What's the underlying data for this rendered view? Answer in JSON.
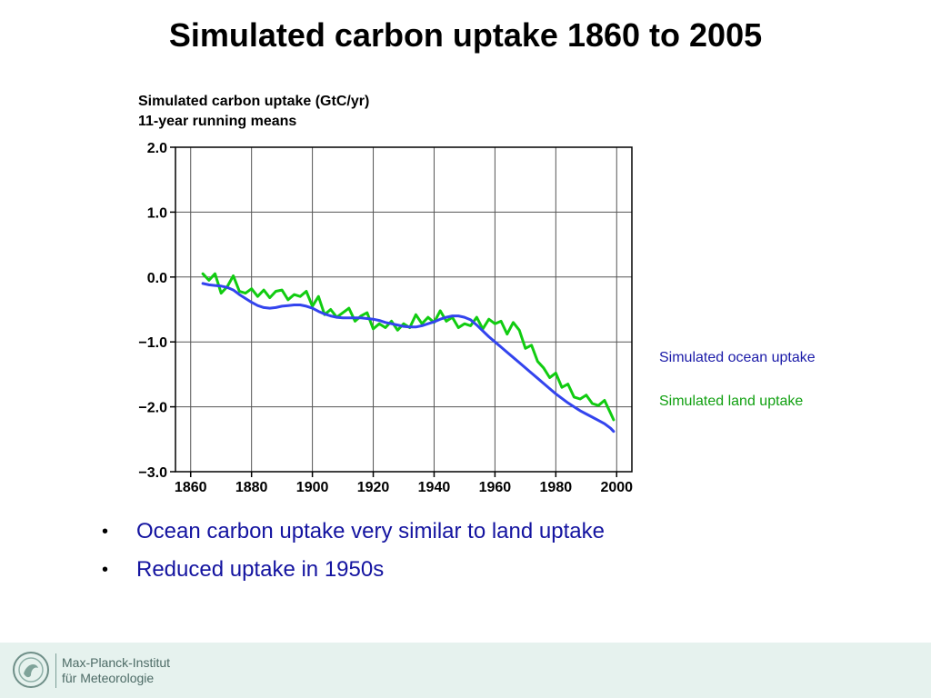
{
  "slide": {
    "title": "Simulated carbon uptake 1860 to 2005",
    "bullets": [
      "Ocean carbon uptake very similar to land uptake",
      "Reduced uptake in 1950s"
    ]
  },
  "footer": {
    "logo_line1": "Max-Planck-Institut",
    "logo_line2": "für Meteorologie",
    "colors": {
      "background": "#e6f2ee",
      "text": "#4d6b66"
    }
  },
  "chart_data": {
    "type": "line",
    "title": "Simulated carbon uptake (GtC/yr)",
    "subtitle": "11-year running means",
    "xlabel": "",
    "ylabel": "",
    "xlim": [
      1855,
      2005
    ],
    "ylim": [
      -3.0,
      2.0
    ],
    "xticks": [
      1860,
      1880,
      1900,
      1920,
      1940,
      1960,
      1980,
      2000
    ],
    "xtick_labels": [
      "1860",
      "1880",
      "1900",
      "1920",
      "1940",
      "1960",
      "1980",
      "2000"
    ],
    "yticks": [
      2.0,
      1.0,
      0.0,
      -1.0,
      -2.0,
      -3.0
    ],
    "ytick_labels": [
      "2.0",
      "1.0",
      "0.0",
      "−1.0",
      "−2.0",
      "−3.0"
    ],
    "grid": true,
    "legend_position": "right",
    "series": [
      {
        "name": "Simulated ocean uptake",
        "color": "#3344ee",
        "x": [
          1864,
          1866,
          1868,
          1870,
          1872,
          1874,
          1876,
          1878,
          1880,
          1882,
          1884,
          1886,
          1888,
          1890,
          1892,
          1894,
          1896,
          1898,
          1900,
          1902,
          1904,
          1906,
          1908,
          1910,
          1912,
          1914,
          1916,
          1918,
          1920,
          1922,
          1924,
          1926,
          1928,
          1930,
          1932,
          1934,
          1936,
          1938,
          1940,
          1942,
          1944,
          1946,
          1948,
          1950,
          1952,
          1954,
          1956,
          1958,
          1960,
          1962,
          1964,
          1966,
          1968,
          1970,
          1972,
          1974,
          1976,
          1978,
          1980,
          1982,
          1984,
          1986,
          1988,
          1990,
          1992,
          1994,
          1996,
          1998,
          1999
        ],
        "values": [
          -0.1,
          -0.12,
          -0.13,
          -0.14,
          -0.16,
          -0.2,
          -0.27,
          -0.33,
          -0.39,
          -0.44,
          -0.47,
          -0.48,
          -0.47,
          -0.45,
          -0.44,
          -0.43,
          -0.43,
          -0.45,
          -0.48,
          -0.53,
          -0.57,
          -0.6,
          -0.62,
          -0.63,
          -0.63,
          -0.63,
          -0.63,
          -0.64,
          -0.65,
          -0.67,
          -0.7,
          -0.72,
          -0.74,
          -0.76,
          -0.77,
          -0.77,
          -0.75,
          -0.72,
          -0.69,
          -0.65,
          -0.62,
          -0.6,
          -0.6,
          -0.62,
          -0.66,
          -0.74,
          -0.83,
          -0.92,
          -1.0,
          -1.08,
          -1.16,
          -1.24,
          -1.32,
          -1.4,
          -1.48,
          -1.56,
          -1.64,
          -1.72,
          -1.8,
          -1.87,
          -1.94,
          -2.0,
          -2.06,
          -2.11,
          -2.16,
          -2.21,
          -2.26,
          -2.33,
          -2.38
        ]
      },
      {
        "name": "Simulated land uptake",
        "color": "#11cc11",
        "x": [
          1864,
          1866,
          1868,
          1869,
          1870,
          1872,
          1874,
          1876,
          1878,
          1880,
          1882,
          1884,
          1886,
          1888,
          1890,
          1892,
          1894,
          1896,
          1898,
          1900,
          1902,
          1904,
          1906,
          1908,
          1910,
          1912,
          1914,
          1916,
          1918,
          1920,
          1922,
          1924,
          1926,
          1928,
          1930,
          1932,
          1934,
          1936,
          1938,
          1940,
          1942,
          1944,
          1946,
          1948,
          1950,
          1952,
          1954,
          1956,
          1958,
          1960,
          1962,
          1964,
          1966,
          1968,
          1970,
          1972,
          1974,
          1976,
          1978,
          1980,
          1982,
          1984,
          1986,
          1988,
          1990,
          1992,
          1994,
          1996,
          1998,
          1999
        ],
        "values": [
          0.05,
          -0.05,
          0.05,
          -0.1,
          -0.25,
          -0.15,
          0.02,
          -0.22,
          -0.25,
          -0.18,
          -0.3,
          -0.2,
          -0.32,
          -0.22,
          -0.2,
          -0.35,
          -0.27,
          -0.3,
          -0.22,
          -0.45,
          -0.3,
          -0.58,
          -0.5,
          -0.62,
          -0.55,
          -0.48,
          -0.68,
          -0.6,
          -0.55,
          -0.8,
          -0.72,
          -0.78,
          -0.68,
          -0.82,
          -0.72,
          -0.78,
          -0.58,
          -0.72,
          -0.62,
          -0.7,
          -0.52,
          -0.68,
          -0.62,
          -0.78,
          -0.72,
          -0.75,
          -0.62,
          -0.8,
          -0.65,
          -0.72,
          -0.68,
          -0.88,
          -0.7,
          -0.82,
          -1.1,
          -1.05,
          -1.3,
          -1.4,
          -1.55,
          -1.48,
          -1.7,
          -1.65,
          -1.85,
          -1.88,
          -1.82,
          -1.95,
          -1.98,
          -1.9,
          -2.1,
          -2.2
        ]
      }
    ]
  }
}
